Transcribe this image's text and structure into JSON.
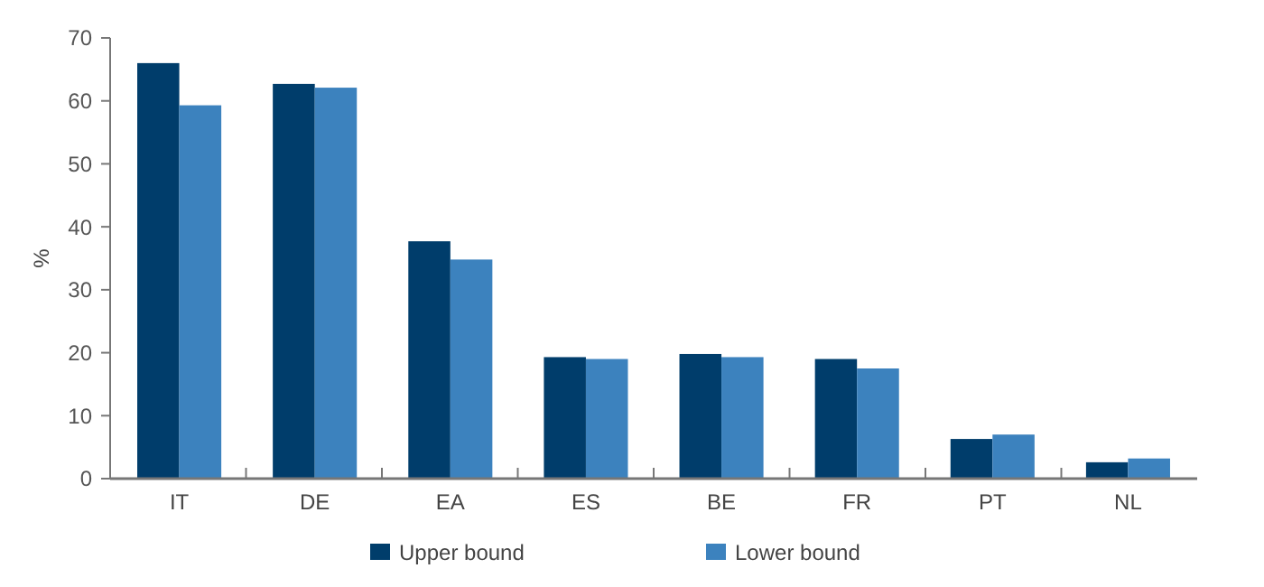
{
  "chart_data": {
    "type": "bar",
    "ylabel": "%",
    "categories": [
      "IT",
      "DE",
      "EA",
      "ES",
      "BE",
      "FR",
      "PT",
      "NL"
    ],
    "series": [
      {
        "name": "Upper bound",
        "color": "#003d6b",
        "values": [
          66.0,
          62.7,
          37.7,
          19.3,
          19.8,
          19.0,
          6.3,
          2.6
        ]
      },
      {
        "name": "Lower bound",
        "color": "#3c82be",
        "values": [
          59.3,
          62.1,
          34.8,
          19.0,
          19.3,
          17.5,
          7.0,
          3.2
        ]
      }
    ],
    "ylim": [
      0,
      70
    ],
    "yticks": [
      0,
      10,
      20,
      30,
      40,
      50,
      60,
      70
    ],
    "grid": false,
    "legend": "bottom"
  }
}
